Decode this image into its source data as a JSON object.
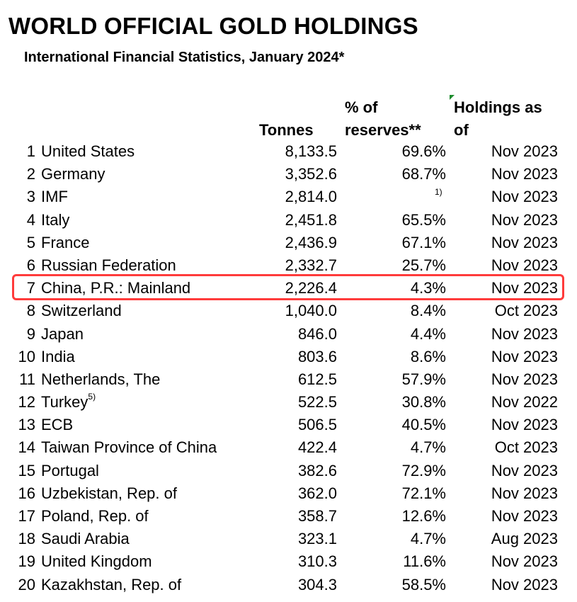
{
  "title": "WORLD OFFICIAL GOLD HOLDINGS",
  "subtitle": "International Financial Statistics, January 2024*",
  "headers": {
    "tonnes": "Tonnes",
    "pct_line1": "% of",
    "pct_line2": "reserves**",
    "holdings_line1": "Holdings as",
    "holdings_line2": "of"
  },
  "highlight_color": "#ff3b3b",
  "rows": [
    {
      "rank": "1",
      "country": "United States",
      "tonnes": "8,133.5",
      "pct": "69.6%",
      "date": "Nov 2023"
    },
    {
      "rank": "2",
      "country": "Germany",
      "tonnes": "3,352.6",
      "pct": "68.7%",
      "date": "Nov 2023"
    },
    {
      "rank": "3",
      "country": "IMF",
      "tonnes": "2,814.0",
      "pct": "",
      "pct_note": "1)",
      "date": "Nov 2023"
    },
    {
      "rank": "4",
      "country": "Italy",
      "tonnes": "2,451.8",
      "pct": "65.5%",
      "date": "Nov 2023"
    },
    {
      "rank": "5",
      "country": "France",
      "tonnes": "2,436.9",
      "pct": "67.1%",
      "date": "Nov 2023"
    },
    {
      "rank": "6",
      "country": "Russian Federation",
      "tonnes": "2,332.7",
      "pct": "25.7%",
      "date": "Nov 2023"
    },
    {
      "rank": "7",
      "country": "China, P.R.: Mainland",
      "tonnes": "2,226.4",
      "pct": "4.3%",
      "date": "Nov 2023",
      "highlighted": true
    },
    {
      "rank": "8",
      "country": "Switzerland",
      "tonnes": "1,040.0",
      "pct": "8.4%",
      "date": "Oct 2023"
    },
    {
      "rank": "9",
      "country": "Japan",
      "tonnes": "846.0",
      "pct": "4.4%",
      "date": "Nov 2023"
    },
    {
      "rank": "10",
      "country": "India",
      "tonnes": "803.6",
      "pct": "8.6%",
      "date": "Nov 2023"
    },
    {
      "rank": "11",
      "country": "Netherlands, The",
      "tonnes": "612.5",
      "pct": "57.9%",
      "date": "Nov 2023"
    },
    {
      "rank": "12",
      "country": "Turkey",
      "country_note": "5)",
      "tonnes": "522.5",
      "pct": "30.8%",
      "date": "Nov 2022"
    },
    {
      "rank": "13",
      "country": "ECB",
      "tonnes": "506.5",
      "pct": "40.5%",
      "date": "Nov 2023"
    },
    {
      "rank": "14",
      "country": "Taiwan Province of China",
      "tonnes": "422.4",
      "pct": "4.7%",
      "date": "Oct 2023"
    },
    {
      "rank": "15",
      "country": "Portugal",
      "tonnes": "382.6",
      "pct": "72.9%",
      "date": "Nov 2023"
    },
    {
      "rank": "16",
      "country": "Uzbekistan, Rep. of",
      "tonnes": "362.0",
      "pct": "72.1%",
      "date": "Nov 2023"
    },
    {
      "rank": "17",
      "country": "Poland, Rep. of",
      "tonnes": "358.7",
      "pct": "12.6%",
      "date": "Nov 2023"
    },
    {
      "rank": "18",
      "country": "Saudi Arabia",
      "tonnes": "323.1",
      "pct": "4.7%",
      "date": "Aug 2023"
    },
    {
      "rank": "19",
      "country": "United Kingdom",
      "tonnes": "310.3",
      "pct": "11.6%",
      "date": "Nov 2023"
    },
    {
      "rank": "20",
      "country": "Kazakhstan, Rep. of",
      "tonnes": "304.3",
      "pct": "58.5%",
      "date": "Nov 2023"
    }
  ]
}
